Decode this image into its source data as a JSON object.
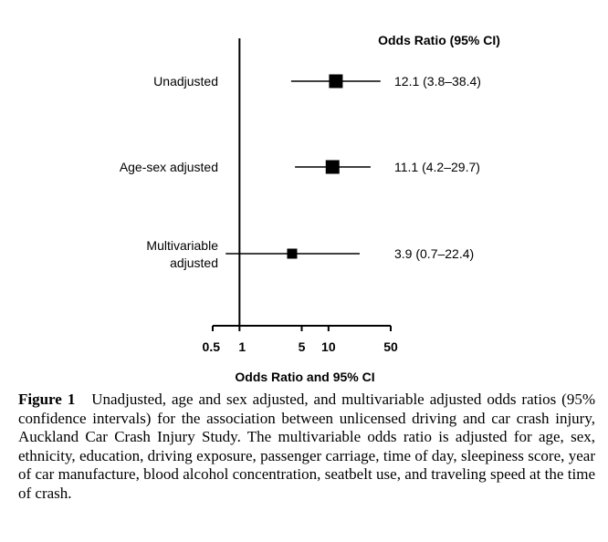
{
  "chart_data": {
    "type": "forest",
    "xscale": "log",
    "xlim": [
      0.5,
      50
    ],
    "xticks": [
      0.5,
      1,
      5,
      10,
      50
    ],
    "xtick_labels": [
      "0.5",
      "1",
      "5",
      "10",
      "50"
    ],
    "reference_line": 1,
    "xlabel": "Odds Ratio and 95% CI",
    "column_header": "Odds Ratio (95% CI)",
    "rows": [
      {
        "label": [
          "Unadjusted"
        ],
        "or": 12.1,
        "lo": 3.8,
        "hi": 38.4,
        "text": "12.1 (3.8–38.4)"
      },
      {
        "label": [
          "Age-sex adjusted"
        ],
        "or": 11.1,
        "lo": 4.2,
        "hi": 29.7,
        "text": "11.1 (4.2–29.7)"
      },
      {
        "label": [
          "Multivariable",
          "adjusted"
        ],
        "or": 3.9,
        "lo": 0.7,
        "hi": 22.4,
        "text": "3.9 (0.7–22.4)"
      }
    ]
  },
  "caption": {
    "lead": "Figure 1",
    "text": "Unadjusted, age and sex adjusted, and multivariable adjusted odds ratios (95% confidence intervals) for the association between unlicensed driving and car crash injury, Auckland Car Crash Injury Study. The multivariable odds ratio is adjusted for age, sex, ethnicity, education, driving exposure, passenger carriage, time of day, sleepiness score, year of car manufacture, blood alcohol concentration, seatbelt use, and traveling speed at the time of crash."
  }
}
